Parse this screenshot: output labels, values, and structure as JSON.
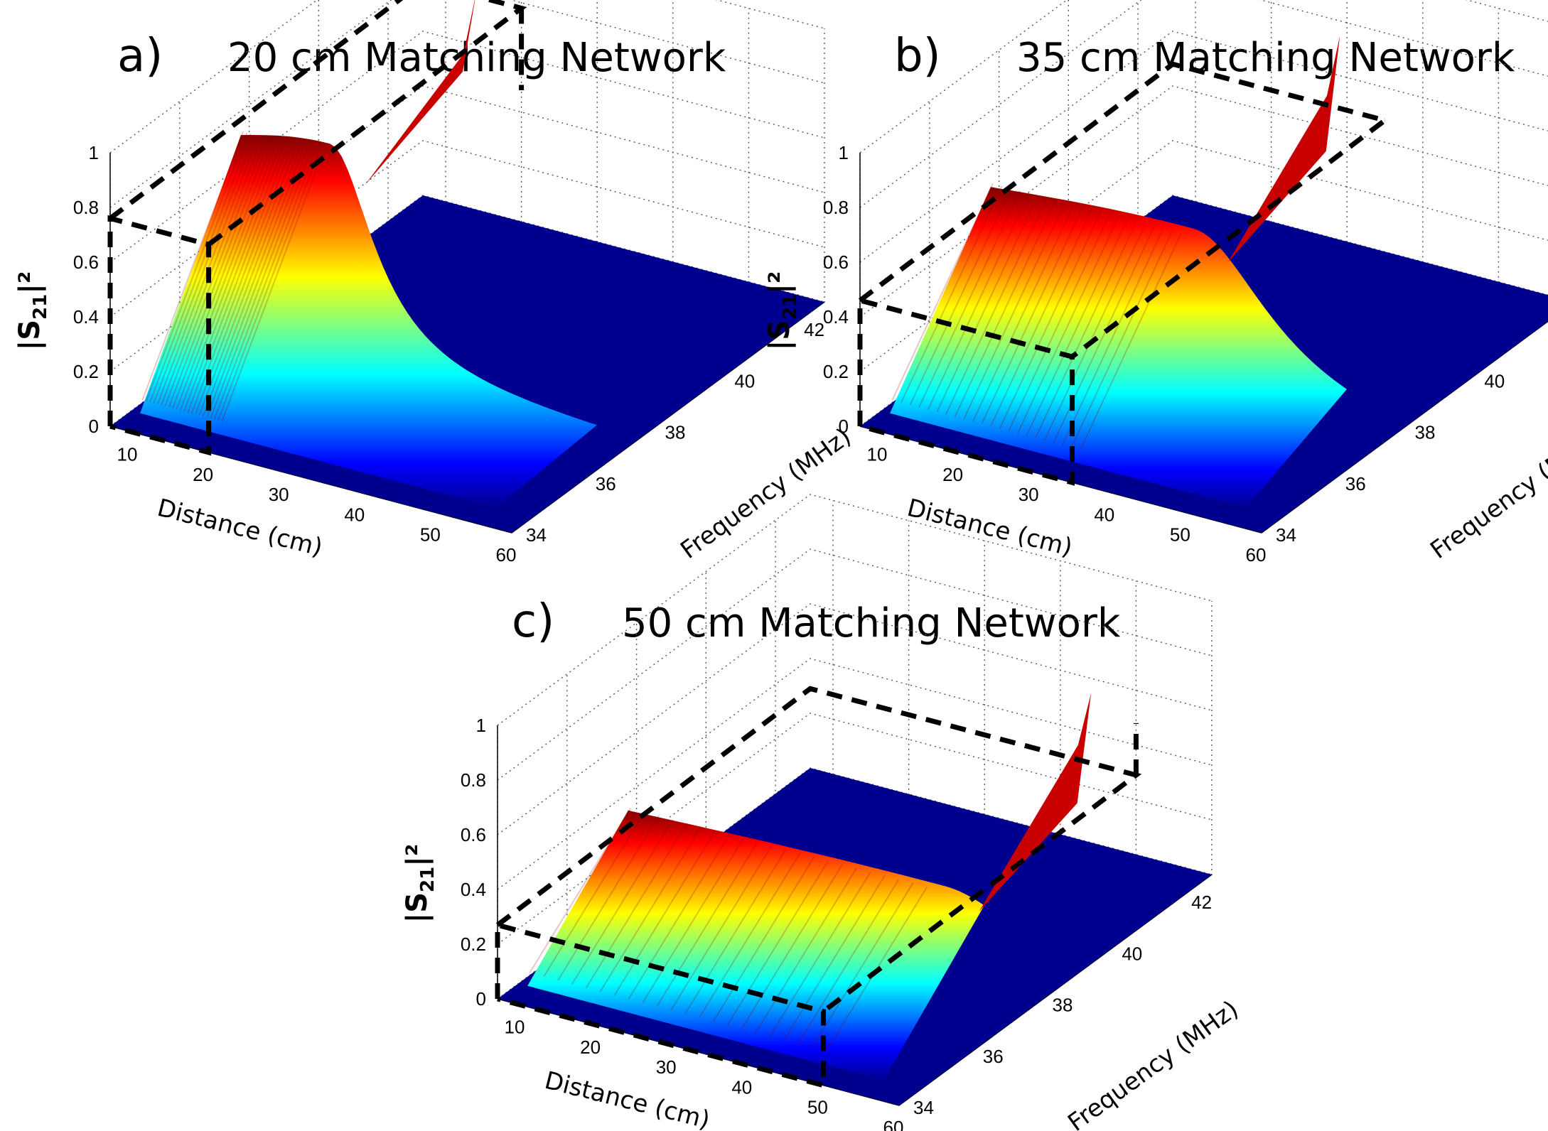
{
  "figure": {
    "type": "3d-surface-panels",
    "panels": [
      {
        "letter": "a)",
        "title": "20 cm Matching Network",
        "matching_distance_cm": 20,
        "peak_value": 1.0,
        "plateau_value": 0.8,
        "box_height": 0.76
      },
      {
        "letter": "b)",
        "title": "35 cm Matching Network",
        "matching_distance_cm": 35,
        "peak_value": 0.95,
        "plateau_value": 0.6,
        "box_height": 0.46
      },
      {
        "letter": "c)",
        "title": "50 cm Matching Network",
        "matching_distance_cm": 50,
        "peak_value": 0.75,
        "plateau_value": 0.4,
        "box_height": 0.27
      }
    ]
  },
  "chart_data": {
    "type": "surface",
    "x": {
      "label": "Distance (cm)",
      "range": [
        7,
        60
      ],
      "ticks": [
        "10",
        "20",
        "30",
        "40",
        "50",
        "60"
      ]
    },
    "y": {
      "label": "Frequency (MHz)",
      "range": [
        34,
        43
      ],
      "ticks": [
        "34",
        "36",
        "38",
        "40",
        "42"
      ]
    },
    "z": {
      "label": "|S21|²",
      "range": [
        0,
        1
      ],
      "ticks": [
        "0",
        "0.2",
        "0.4",
        "0.6",
        "0.8",
        "1"
      ]
    },
    "colormap": "jet",
    "colormap_stops": [
      "#00008f",
      "#0000ff",
      "#00ffff",
      "#ffff00",
      "#ff0000",
      "#800000"
    ],
    "series": [
      {
        "name": "20 cm Matching Network",
        "matching_distance_cm": 20,
        "peak": 1.0,
        "plateau": 0.8
      },
      {
        "name": "35 cm Matching Network",
        "matching_distance_cm": 35,
        "peak": 0.95,
        "plateau": 0.6
      },
      {
        "name": "50 cm Matching Network",
        "matching_distance_cm": 50,
        "peak": 0.75,
        "plateau": 0.4
      }
    ],
    "axis_labels": {
      "x": "Distance (cm)",
      "y": "Frequency (MHz)",
      "z_main": "|S",
      "z_sub": "21",
      "z_tail": "|²"
    }
  }
}
